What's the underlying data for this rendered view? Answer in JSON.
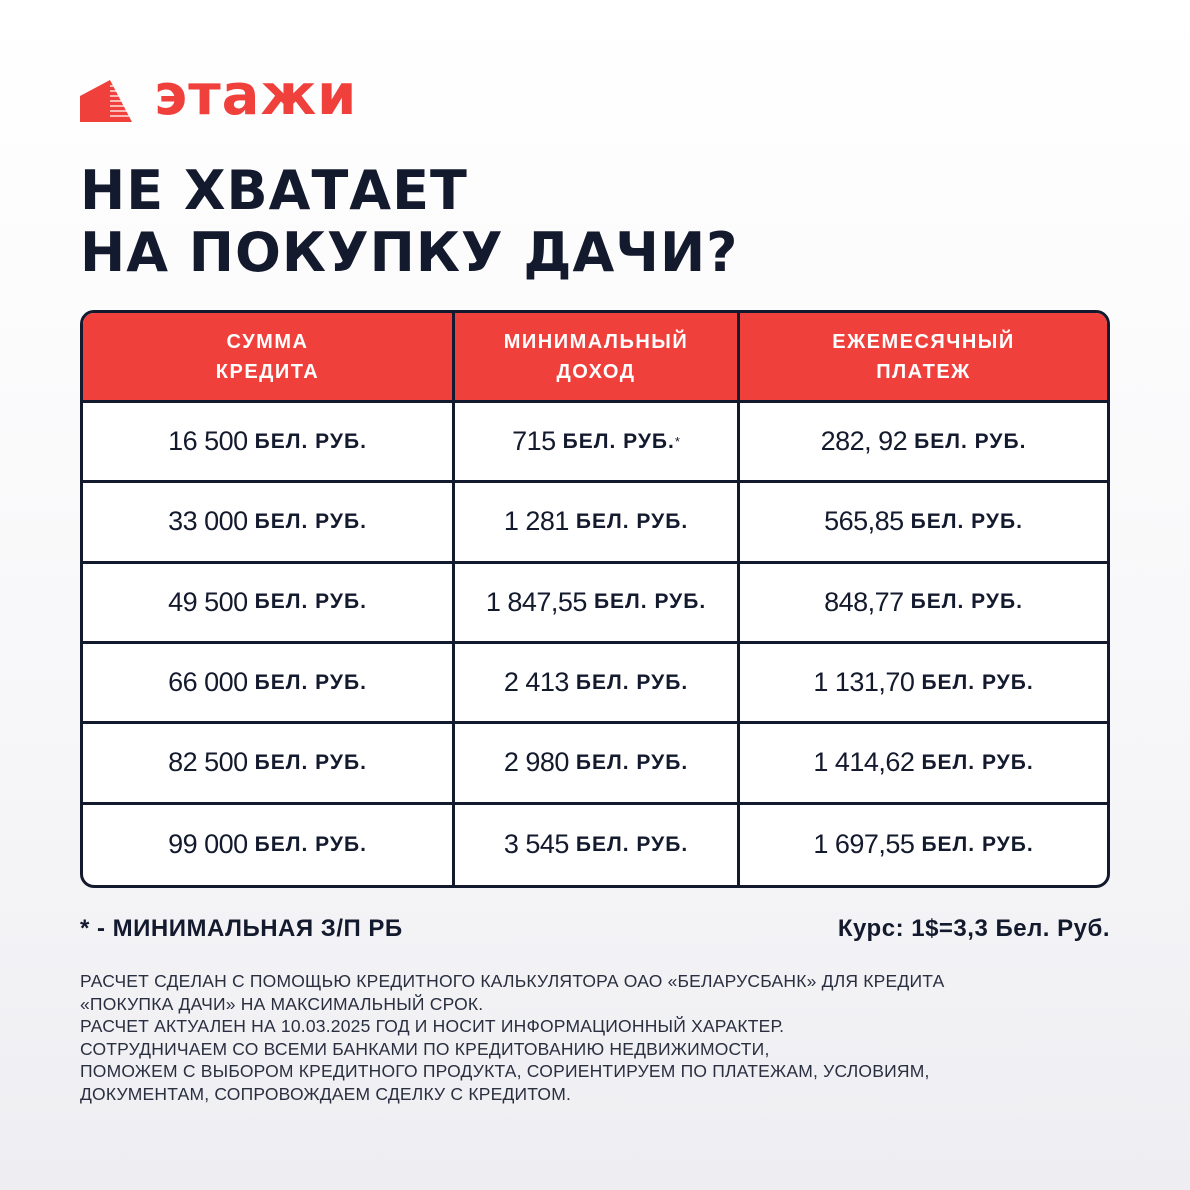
{
  "brand": {
    "name": "этажи",
    "color": "#f0403c"
  },
  "title": [
    "НЕ ХВАТАЕТ",
    "НА ПОКУПКУ ДАЧИ?"
  ],
  "table": {
    "headers": [
      [
        "СУММА",
        "КРЕДИТА"
      ],
      [
        "МИНИМАЛЬНЫЙ",
        "ДОХОД"
      ],
      [
        "ЕЖЕМЕСЯЧНЫЙ",
        "ПЛАТЕЖ"
      ]
    ],
    "unit": "БЕЛ. РУБ.",
    "rows": [
      [
        "16 500",
        "715",
        "282, 92"
      ],
      [
        "33 000",
        "1 281",
        "565,85"
      ],
      [
        "49 500",
        "1 847,55",
        "848,77"
      ],
      [
        "66 000",
        "2 413",
        "1 131,70"
      ],
      [
        "82 500",
        "2 980",
        "1 414,62"
      ],
      [
        "99 000",
        "3 545",
        "1 697,55"
      ]
    ],
    "footnote_mark": "*"
  },
  "footnote": "* - МИНИМАЛЬНАЯ З/П РБ",
  "rate": "Курс: 1$=3,3 Бел. Руб.",
  "disclaimer": [
    "РАСЧЕТ СДЕЛАН С ПОМОЩЬЮ КРЕДИТНОГО КАЛЬКУЛЯТОРА ОАО «БЕЛАРУСБАНК» ДЛЯ КРЕДИТА",
    "«ПОКУПКА ДАЧИ» НА МАКСИМАЛЬНЫЙ СРОК.",
    "РАСЧЕТ АКТУАЛЕН НА 10.03.2025 ГОД И НОСИТ ИНФОРМАЦИОННЫЙ ХАРАКТЕР.",
    "СОТРУДНИЧАЕМ СО ВСЕМИ БАНКАМИ ПО КРЕДИТОВАНИЮ НЕДВИЖИМОСТИ,",
    "ПОМОЖЕМ С ВЫБОРОМ КРЕДИТНОГО ПРОДУКТА, СОРИЕНТИРУЕМ ПО ПЛАТЕЖАМ, УСЛОВИЯМ,",
    "ДОКУМЕНТАМ, СОПРОВОЖДАЕМ СДЕЛКУ С КРЕДИТОМ."
  ]
}
